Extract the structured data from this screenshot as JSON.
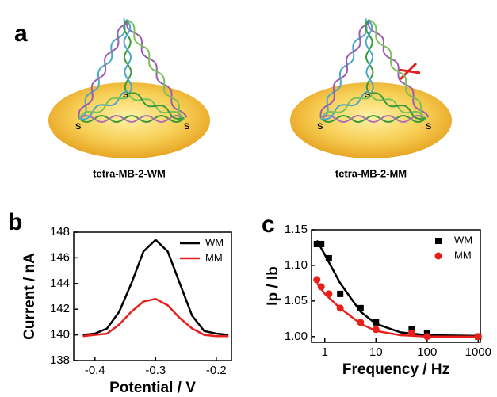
{
  "panel_labels": [
    "a",
    "b",
    "c"
  ],
  "diagram": {
    "left": {
      "caption": "tetra-MB-2-WM",
      "s_labels": [
        "S",
        "S",
        "S"
      ]
    },
    "right": {
      "caption": "tetra-MB-2-MM",
      "s_labels": [
        "S",
        "S",
        "S"
      ]
    }
  },
  "chart_data": [
    {
      "type": "line",
      "x_label": "Potential / V",
      "y_label": "Current / nA",
      "x": [
        -0.42,
        -0.4,
        -0.38,
        -0.36,
        -0.34,
        -0.32,
        -0.3,
        -0.28,
        -0.26,
        -0.24,
        -0.22,
        -0.2,
        -0.18
      ],
      "series": [
        {
          "name": "WM",
          "color": "#000000",
          "values": [
            140,
            140.1,
            140.5,
            141.8,
            144,
            146.5,
            147.4,
            146.5,
            144,
            141.5,
            140.3,
            140.1,
            140
          ]
        },
        {
          "name": "MM",
          "color": "#e8201c",
          "values": [
            139.9,
            140,
            140.1,
            140.8,
            141.8,
            142.6,
            142.8,
            142.3,
            141.3,
            140.5,
            140,
            139.9,
            139.9
          ]
        }
      ],
      "xlim": [
        -0.435,
        -0.175
      ],
      "xticks": [
        -0.4,
        -0.3,
        -0.2
      ],
      "ylim": [
        138,
        148
      ],
      "yticks": [
        138,
        140,
        142,
        144,
        146,
        148
      ],
      "legend": "upper right"
    },
    {
      "type": "scatter",
      "x_label": "Frequency / Hz",
      "y_label": "Ip / Ib",
      "log_x": true,
      "series": [
        {
          "name": "WM",
          "color": "#000000",
          "marker": "square",
          "x": [
            0.7,
            0.85,
            1.2,
            2,
            5,
            10,
            50,
            100,
            1000
          ],
          "values": [
            1.13,
            1.13,
            1.11,
            1.06,
            1.04,
            1.02,
            1.01,
            1.005,
            1.0
          ]
        },
        {
          "name": "MM",
          "color": "#e8201c",
          "marker": "circle",
          "x": [
            0.7,
            0.85,
            1.2,
            2,
            5,
            10,
            50,
            100,
            1000
          ],
          "values": [
            1.08,
            1.07,
            1.06,
            1.04,
            1.02,
            1.01,
            1.005,
            1.0,
            1.0
          ]
        }
      ],
      "fits": [
        {
          "color": "#000000",
          "x": [
            0.7,
            1,
            2,
            5,
            10,
            30,
            100,
            1000
          ],
          "values": [
            1.135,
            1.115,
            1.075,
            1.035,
            1.018,
            1.006,
            1.002,
            1.001
          ]
        },
        {
          "color": "#e8201c",
          "x": [
            0.7,
            1,
            2,
            5,
            10,
            30,
            100,
            1000
          ],
          "values": [
            1.075,
            1.06,
            1.04,
            1.018,
            1.008,
            1.002,
            1.0,
            1.0
          ]
        }
      ],
      "xlim": [
        0.55,
        1100
      ],
      "xticks": [
        1,
        10,
        100,
        1000
      ],
      "ylim": [
        0.992,
        1.15
      ],
      "yticks": [
        {
          "value": 1,
          "label": "1.00"
        },
        1.05,
        {
          "value": 1.1,
          "label": "1.10"
        },
        1.15
      ],
      "legend": "upper right"
    }
  ]
}
